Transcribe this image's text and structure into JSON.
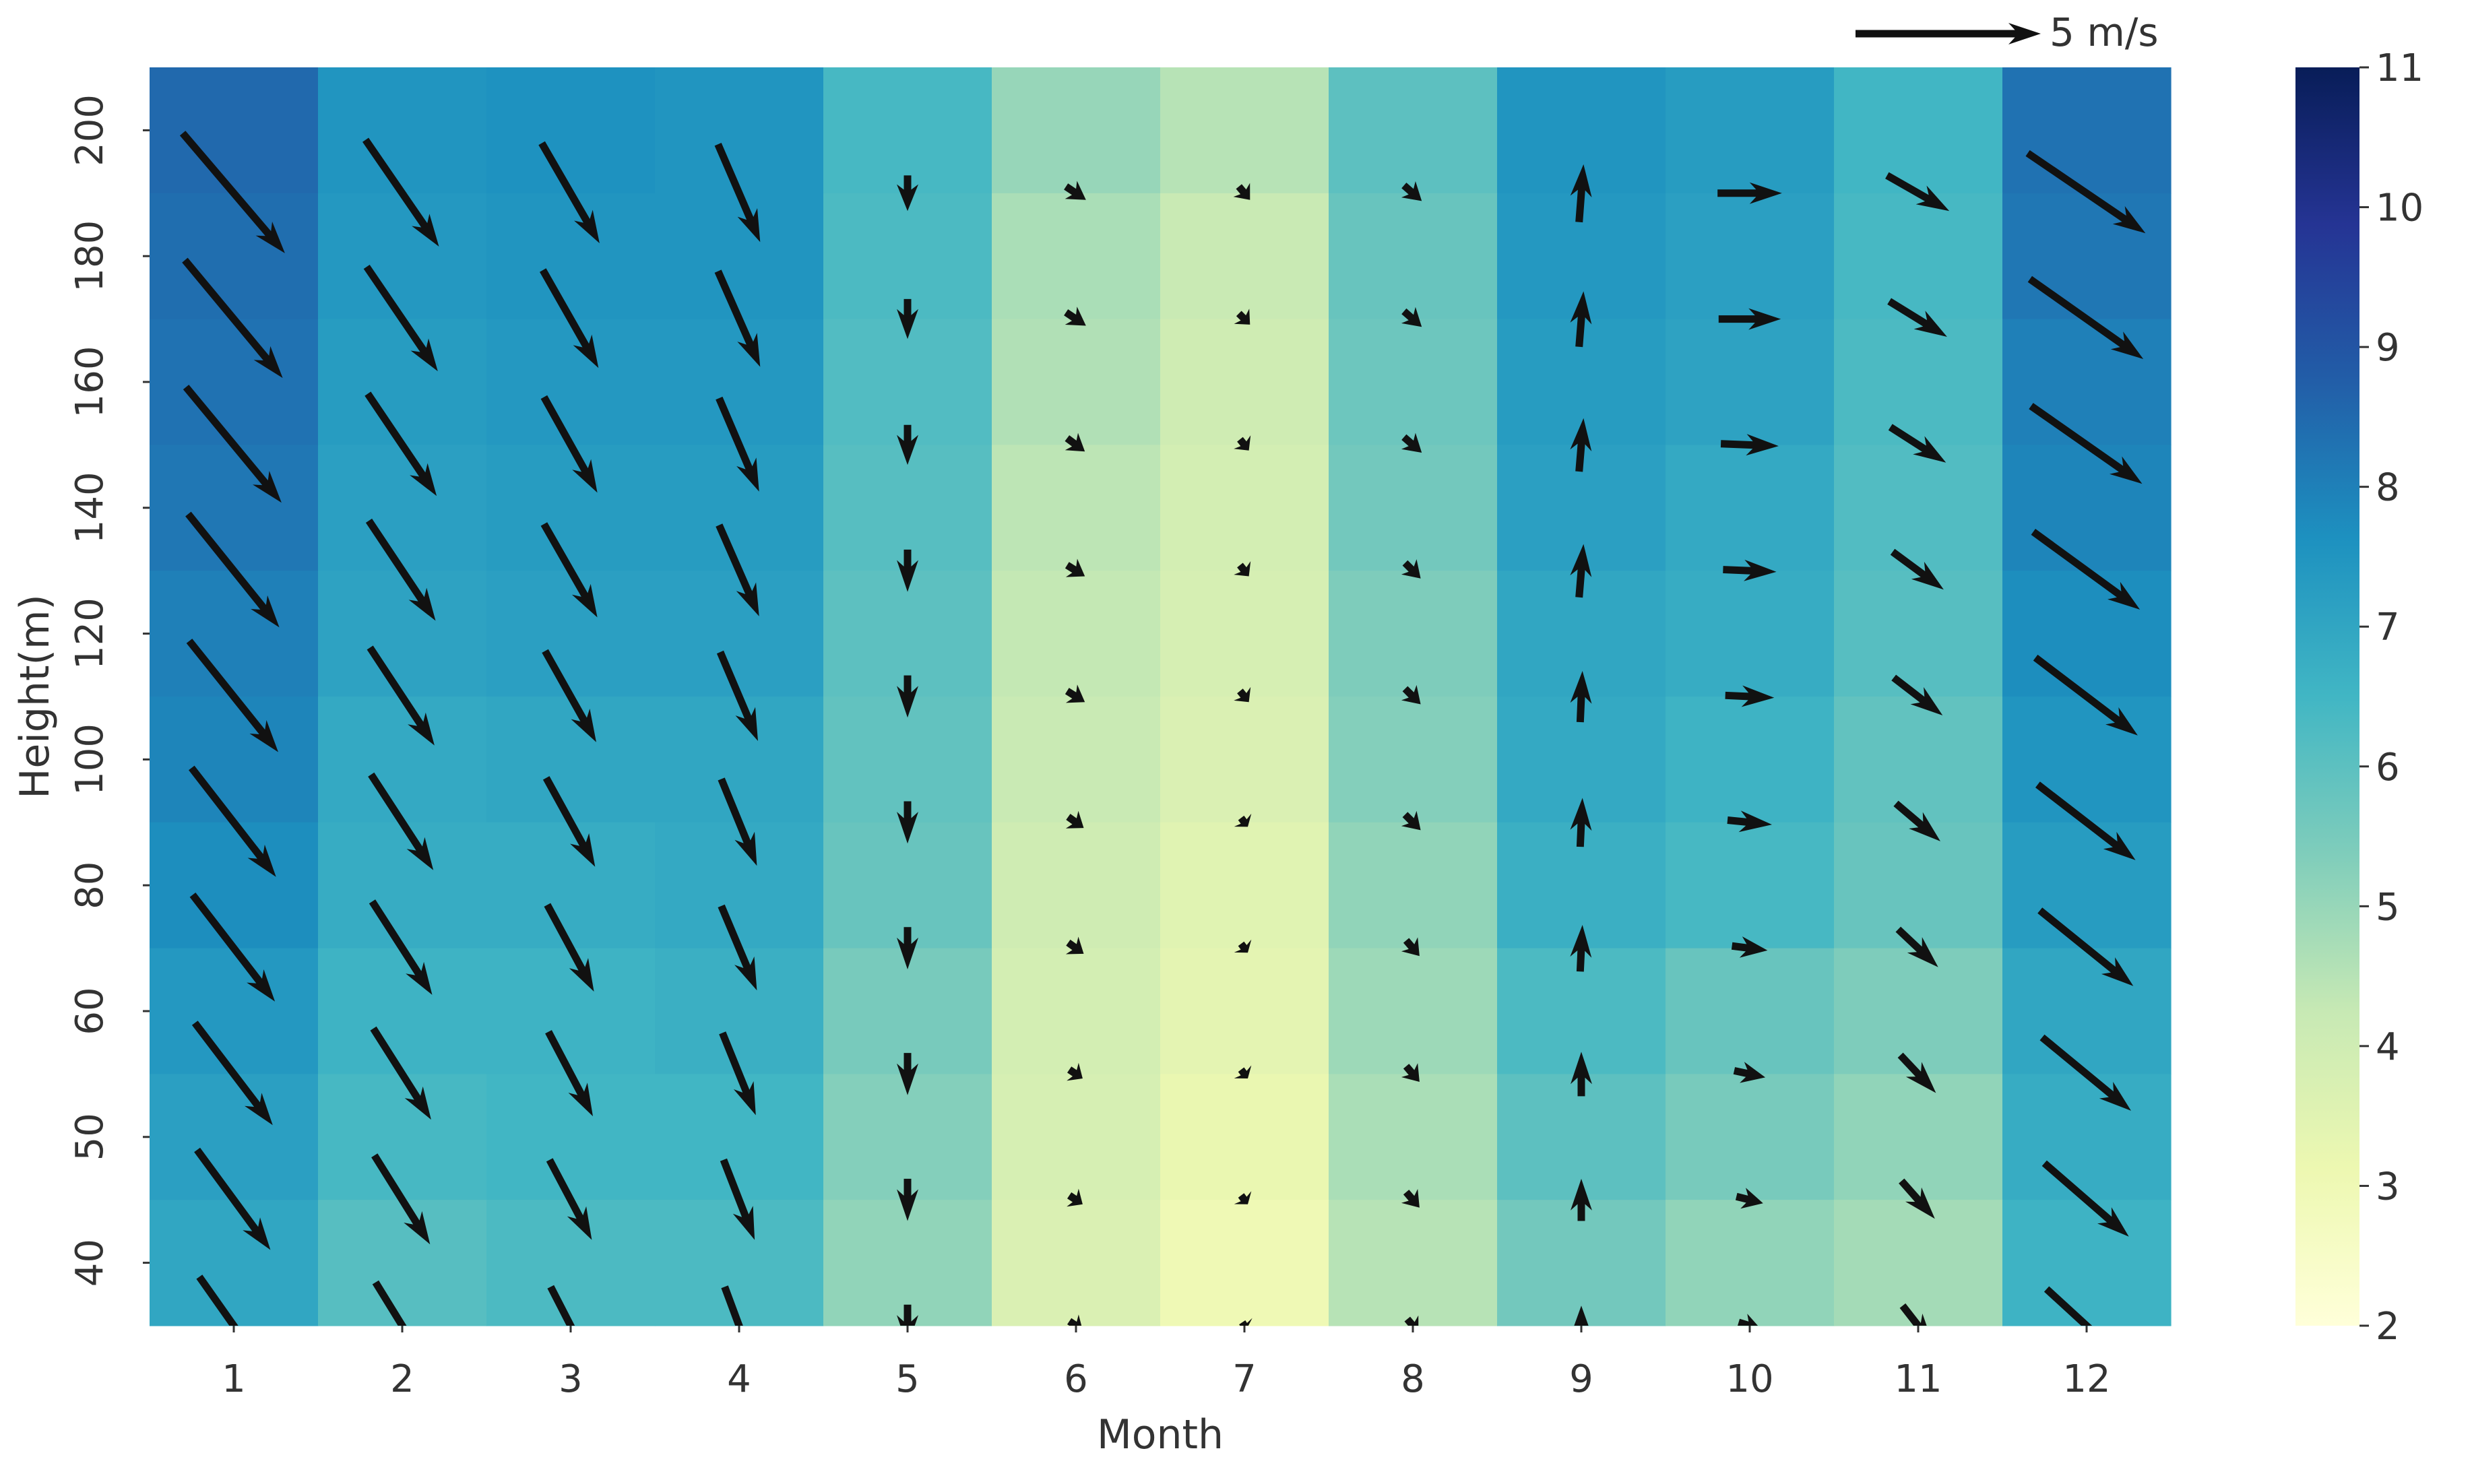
{
  "chart_data": {
    "type": "heatmap",
    "subtype": "heatmap with wind vector (quiver) overlay",
    "title": "",
    "xlabel": "Month",
    "ylabel": "Height(m)",
    "x_categories": [
      "1",
      "2",
      "3",
      "4",
      "5",
      "6",
      "7",
      "8",
      "9",
      "10",
      "11",
      "12"
    ],
    "y_categories": [
      "200",
      "180",
      "160",
      "140",
      "120",
      "100",
      "80",
      "60",
      "50",
      "40"
    ],
    "colormap": "YlGnBu",
    "colorbar": {
      "min": 2,
      "max": 11,
      "ticks": [
        "2",
        "3",
        "4",
        "5",
        "6",
        "7",
        "8",
        "9",
        "10",
        "11"
      ]
    },
    "values": [
      [
        8.5,
        7.5,
        7.6,
        7.5,
        6.4,
        5.0,
        4.5,
        6.0,
        7.5,
        7.3,
        6.5,
        8.3
      ],
      [
        8.4,
        7.4,
        7.5,
        7.5,
        6.3,
        4.7,
        4.2,
        5.8,
        7.4,
        7.2,
        6.4,
        8.2
      ],
      [
        8.3,
        7.3,
        7.4,
        7.4,
        6.2,
        4.6,
        4.0,
        5.7,
        7.3,
        7.1,
        6.3,
        8.0
      ],
      [
        8.2,
        7.2,
        7.3,
        7.3,
        6.1,
        4.4,
        3.9,
        5.6,
        7.2,
        6.9,
        6.2,
        7.9
      ],
      [
        8.0,
        7.1,
        7.2,
        7.2,
        6.0,
        4.3,
        3.8,
        5.4,
        7.0,
        6.8,
        6.1,
        7.7
      ],
      [
        7.9,
        6.9,
        7.0,
        7.0,
        5.9,
        4.2,
        3.7,
        5.3,
        6.9,
        6.6,
        5.9,
        7.5
      ],
      [
        7.7,
        6.8,
        6.8,
        6.9,
        5.8,
        4.0,
        3.5,
        5.1,
        6.7,
        6.4,
        5.8,
        7.3
      ],
      [
        7.4,
        6.6,
        6.6,
        6.7,
        5.5,
        3.9,
        3.4,
        4.9,
        6.3,
        5.8,
        5.4,
        7.0
      ],
      [
        7.2,
        6.4,
        6.5,
        6.5,
        5.3,
        3.8,
        3.2,
        4.7,
        6.0,
        5.5,
        5.1,
        6.8
      ],
      [
        7.0,
        6.1,
        6.3,
        6.3,
        5.1,
        3.7,
        3.0,
        4.5,
        5.6,
        5.1,
        4.8,
        6.6
      ]
    ],
    "vectors_u": [
      [
        4.6,
        3.3,
        2.6,
        1.9,
        0.0,
        0.9,
        0.5,
        0.8,
        0.2,
        2.9,
        2.8,
        5.3
      ],
      [
        4.4,
        3.2,
        2.5,
        1.9,
        0.0,
        0.9,
        0.5,
        0.8,
        0.2,
        2.8,
        2.6,
        5.1
      ],
      [
        4.3,
        3.1,
        2.4,
        1.8,
        0.0,
        0.8,
        0.4,
        0.8,
        0.2,
        2.6,
        2.5,
        5.0
      ],
      [
        4.1,
        3.0,
        2.4,
        1.8,
        0.0,
        0.8,
        0.4,
        0.7,
        0.2,
        2.4,
        2.3,
        4.8
      ],
      [
        4.0,
        2.9,
        2.3,
        1.7,
        0.0,
        0.8,
        0.4,
        0.7,
        0.1,
        2.2,
        2.2,
        4.6
      ],
      [
        3.8,
        2.8,
        2.2,
        1.6,
        0.0,
        0.7,
        0.3,
        0.7,
        0.1,
        2.0,
        2.0,
        4.4
      ],
      [
        3.7,
        2.7,
        2.1,
        1.6,
        0.0,
        0.7,
        0.3,
        0.6,
        0.1,
        1.6,
        1.8,
        4.2
      ],
      [
        3.5,
        2.6,
        2.0,
        1.5,
        0.0,
        0.6,
        0.3,
        0.6,
        0.0,
        1.4,
        1.6,
        4.0
      ],
      [
        3.3,
        2.5,
        1.9,
        1.4,
        0.0,
        0.6,
        0.3,
        0.6,
        0.0,
        1.2,
        1.5,
        3.8
      ],
      [
        3.1,
        2.4,
        1.8,
        1.3,
        0.0,
        0.6,
        0.2,
        0.5,
        0.0,
        1.0,
        1.4,
        3.6
      ]
    ],
    "vectors_v": [
      [
        -5.4,
        -4.8,
        -4.5,
        -4.4,
        -1.6,
        -0.6,
        -0.6,
        -0.7,
        2.6,
        0.0,
        -1.6,
        -3.6
      ],
      [
        -5.3,
        -4.7,
        -4.4,
        -4.3,
        -1.8,
        -0.6,
        -0.5,
        -0.7,
        2.5,
        0.0,
        -1.6,
        -3.6
      ],
      [
        -5.2,
        -4.6,
        -4.3,
        -4.2,
        -1.8,
        -0.6,
        -0.5,
        -0.7,
        2.4,
        -0.1,
        -1.6,
        -3.5
      ],
      [
        -5.1,
        -4.5,
        -4.2,
        -4.1,
        -1.9,
        -0.5,
        -0.5,
        -0.7,
        2.4,
        -0.1,
        -1.7,
        -3.5
      ],
      [
        -5.0,
        -4.4,
        -4.1,
        -4.0,
        -1.9,
        -0.5,
        -0.5,
        -0.7,
        2.3,
        -0.1,
        -1.7,
        -3.5
      ],
      [
        -4.9,
        -4.3,
        -4.0,
        -3.9,
        -1.9,
        -0.5,
        -0.4,
        -0.7,
        2.2,
        -0.2,
        -1.7,
        -3.4
      ],
      [
        -4.8,
        -4.2,
        -3.9,
        -3.8,
        -1.9,
        -0.5,
        -0.4,
        -0.7,
        2.1,
        -0.2,
        -1.7,
        -3.4
      ],
      [
        -4.6,
        -4.1,
        -3.8,
        -3.7,
        -1.9,
        -0.4,
        -0.4,
        -0.7,
        2.0,
        -0.3,
        -1.7,
        -3.3
      ],
      [
        -4.5,
        -4.0,
        -3.6,
        -3.6,
        -1.9,
        -0.4,
        -0.4,
        -0.7,
        1.9,
        -0.3,
        -1.7,
        -3.3
      ],
      [
        -4.4,
        -3.9,
        -3.5,
        -3.5,
        -1.9,
        -0.4,
        -0.3,
        -0.6,
        1.8,
        -0.3,
        -1.8,
        -3.3
      ]
    ],
    "quiver_key": {
      "magnitude": 5,
      "label": "5 m/s"
    },
    "grid": false,
    "legend": "colorbar at right"
  }
}
